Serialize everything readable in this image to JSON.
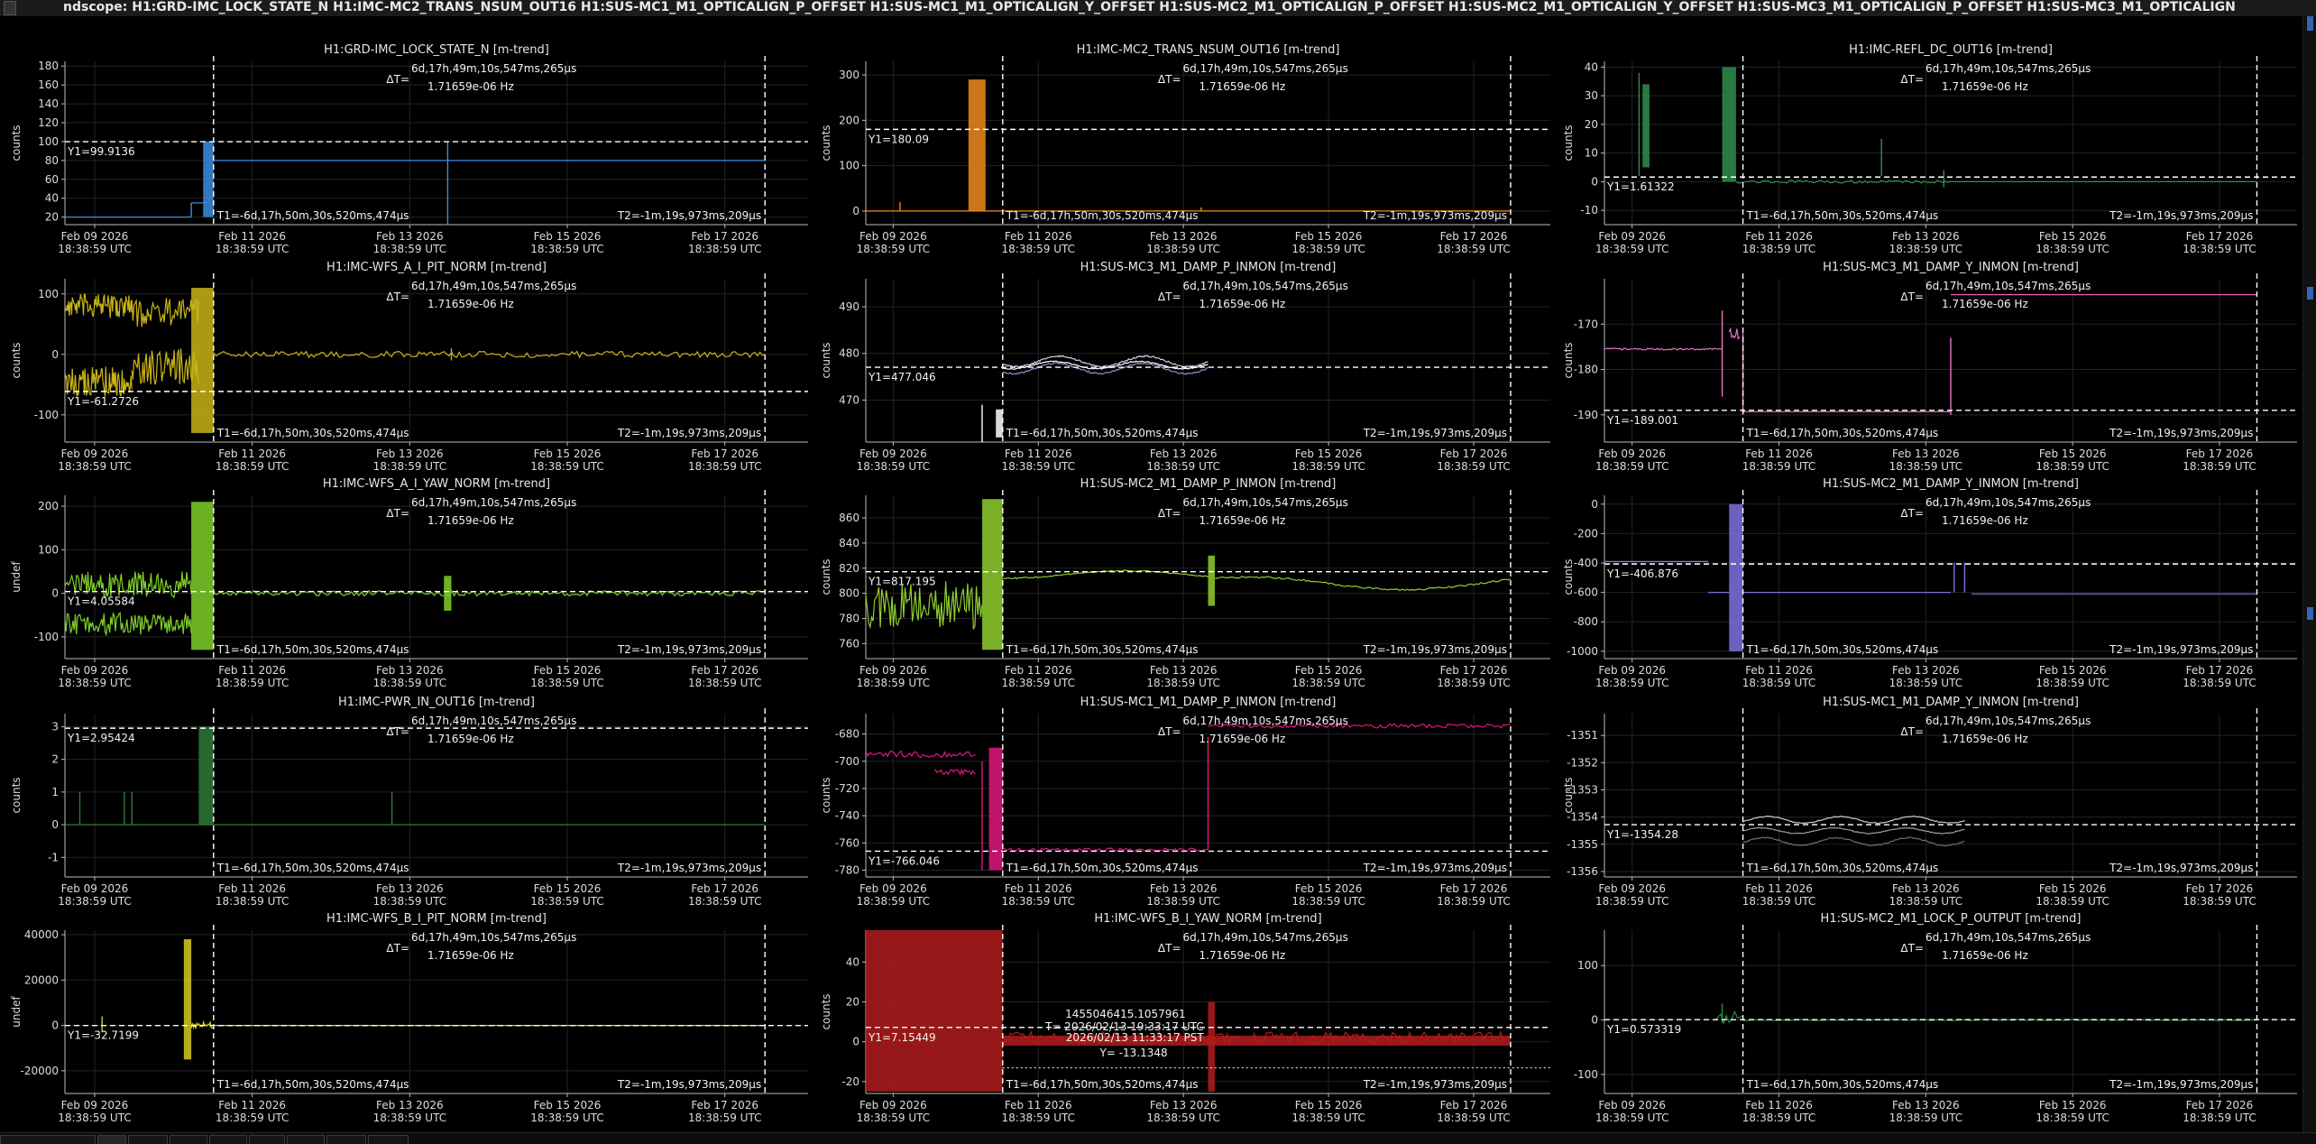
{
  "window": {
    "title": "ndscope: H1:GRD-IMC_LOCK_STATE_N H1:IMC-MC2_TRANS_NSUM_OUT16 H1:SUS-MC1_M1_OPTICALIGN_P_OFFSET H1:SUS-MC1_M1_OPTICALIGN_Y_OFFSET H1:SUS-MC2_M1_OPTICALIGN_P_OFFSET H1:SUS-MC2_M1_OPTICALIGN_Y_OFFSET H1:SUS-MC3_M1_OPTICALIGN_P_OFFSET H1:SUS-MC3_M1_OPTICALIGN"
  },
  "colors": {
    "background": "#000000",
    "grid": "#262626",
    "axis": "#bbbbbb",
    "cursor": "#ffffff"
  },
  "common": {
    "x_tick_labels": [
      "Feb 09 2026",
      "Feb 11 2026",
      "Feb 13 2026",
      "Feb 15 2026",
      "Feb 17 2026"
    ],
    "x_tick_sublabel": "18:38:59 UTC",
    "delta_t": "ΔT=",
    "delta_t_value": "6d,17h,49m,10s,547ms,265µs",
    "delta_f": "1.71659e-06 Hz",
    "t1": "T1=-6d,17h,50m,30s,520ms,474µs",
    "t2": "T2=-1m,19s,973ms,209µs"
  },
  "tabs": [
    "",
    "",
    "",
    "",
    "",
    "",
    "",
    "",
    ""
  ],
  "chart_data": [
    {
      "type": "line",
      "title": "H1:GRD-IMC_LOCK_STATE_N [m-trend]",
      "ylabel": "counts",
      "ylim": [
        12,
        185
      ],
      "yticks": [
        20,
        40,
        60,
        80,
        100,
        120,
        140,
        160,
        180
      ],
      "y1_label": "Y1=99.9136",
      "y1": 99.9136,
      "color": "#3d8ee0",
      "kind": "state"
    },
    {
      "type": "line",
      "title": "H1:IMC-MC2_TRANS_NSUM_OUT16 [m-trend]",
      "ylabel": "counts",
      "ylim": [
        -30,
        330
      ],
      "yticks": [
        0,
        100,
        200,
        300
      ],
      "y1_label": "Y1=180.09",
      "y1": 180.09,
      "color": "#f08a1c",
      "kind": "trans"
    },
    {
      "type": "line",
      "title": "H1:IMC-REFL_DC_OUT16 [m-trend]",
      "ylabel": "counts",
      "ylim": [
        -15,
        42
      ],
      "yticks": [
        -10,
        0,
        10,
        20,
        30,
        40
      ],
      "y1_label": "Y1=1.61322",
      "y1": 1.61322,
      "color": "#2f8f4e",
      "kind": "refl"
    },
    {
      "type": "line",
      "title": "H1:IMC-WFS_A_I_PIT_NORM [m-trend]",
      "ylabel": "counts",
      "ylim": [
        -145,
        125
      ],
      "yticks": [
        -100,
        0,
        100
      ],
      "y1_label": "Y1=-61.2726",
      "y1": -61.2726,
      "color": "#c9b416",
      "kind": "wfsapit"
    },
    {
      "type": "line",
      "title": "H1:SUS-MC3_M1_DAMP_P_INMON [m-trend]",
      "ylabel": "counts",
      "ylim": [
        461,
        496
      ],
      "yticks": [
        470,
        480,
        490
      ],
      "y1_label": "Y1=477.046",
      "y1": 477.046,
      "color": "#ffffff",
      "kind": "mc3p"
    },
    {
      "type": "line",
      "title": "H1:SUS-MC3_M1_DAMP_Y_INMON [m-trend]",
      "ylabel": "counts",
      "ylim": [
        -196,
        -160
      ],
      "yticks": [
        -190,
        -180,
        -170
      ],
      "y1_label": "Y1=-189.001",
      "y1": -189.001,
      "color": "#e878c0",
      "kind": "mc3y"
    },
    {
      "type": "line",
      "title": "H1:IMC-WFS_A_I_YAW_NORM [m-trend]",
      "ylabel": "undef",
      "ylim": [
        -150,
        225
      ],
      "yticks": [
        -100,
        0,
        100,
        200
      ],
      "y1_label": "Y1=4.05584",
      "y1": 4.05584,
      "color": "#7fcf2a",
      "kind": "wfsayaw"
    },
    {
      "type": "line",
      "title": "H1:SUS-MC2_M1_DAMP_P_INMON [m-trend]",
      "ylabel": "counts",
      "ylim": [
        748,
        878
      ],
      "yticks": [
        760,
        780,
        800,
        820,
        840,
        860
      ],
      "y1_label": "Y1=817.195",
      "y1": 817.195,
      "color": "#8fce2e",
      "kind": "mc2p"
    },
    {
      "type": "line",
      "title": "H1:SUS-MC2_M1_DAMP_Y_INMON [m-trend]",
      "ylabel": "counts",
      "ylim": [
        -1050,
        60
      ],
      "yticks": [
        -1000,
        -800,
        -600,
        -400,
        -200,
        0
      ],
      "y1_label": "Y1=-406.876",
      "y1": -406.876,
      "color": "#7e72e0",
      "kind": "mc2y"
    },
    {
      "type": "line",
      "title": "H1:IMC-PWR_IN_OUT16 [m-trend]",
      "ylabel": "counts",
      "ylim": [
        -1.6,
        3.4
      ],
      "yticks": [
        -1,
        0,
        1,
        2,
        3
      ],
      "y1_label": "Y1=2.95424",
      "y1": 2.95424,
      "color": "#2e7a3a",
      "kind": "pwr"
    },
    {
      "type": "line",
      "title": "H1:SUS-MC1_M1_DAMP_P_INMON [m-trend]",
      "ylabel": "counts",
      "ylim": [
        -785,
        -665
      ],
      "yticks": [
        -780,
        -760,
        -740,
        -720,
        -700,
        -680
      ],
      "y1_label": "Y1=-766.046",
      "y1": -766.046,
      "color": "#e0187e",
      "kind": "mc1p"
    },
    {
      "type": "line",
      "title": "H1:SUS-MC1_M1_DAMP_Y_INMON [m-trend]",
      "ylabel": "counts",
      "ylim": [
        -1356.2,
        -1350.2
      ],
      "yticks": [
        -1356,
        -1355,
        -1354,
        -1353,
        -1352,
        -1351
      ],
      "y1_label": "Y1=-1354.28",
      "y1": -1354.28,
      "color": "#9aa0a8",
      "kind": "mc1y"
    },
    {
      "type": "line",
      "title": "H1:IMC-WFS_B_I_PIT_NORM [m-trend]",
      "ylabel": "undef",
      "ylim": [
        -30000,
        42000
      ],
      "yticks": [
        -20000,
        0,
        20000,
        40000
      ],
      "y1_label": "Y1=-32.7199",
      "y1": -32.7199,
      "color": "#d8cc22",
      "kind": "wfsbpit"
    },
    {
      "type": "line",
      "title": "H1:IMC-WFS_B_I_YAW_NORM [m-trend]",
      "ylabel": "counts",
      "ylim": [
        -26,
        56
      ],
      "yticks": [
        -20,
        0,
        20,
        40
      ],
      "y1_label": "Y1=7.15449",
      "y1": 7.15449,
      "color": "#b21c1c",
      "kind": "wfsbyaw",
      "hover": {
        "gps": "1455046415.1057961",
        "utc": "T= 2026/02/13 19:33:17 UTC",
        "pst": "2026/02/13 11:33:17 PST",
        "y": "Y= -13.1348"
      }
    },
    {
      "type": "line",
      "title": "H1:SUS-MC2_M1_LOCK_P_OUTPUT [m-trend]",
      "ylabel": "",
      "ylim": [
        -135,
        165
      ],
      "yticks": [
        -100,
        0,
        100
      ],
      "y1_label": "Y1=0.573319",
      "y1": 0.573319,
      "color": "#2e8a3a",
      "kind": "mc2lock"
    }
  ]
}
